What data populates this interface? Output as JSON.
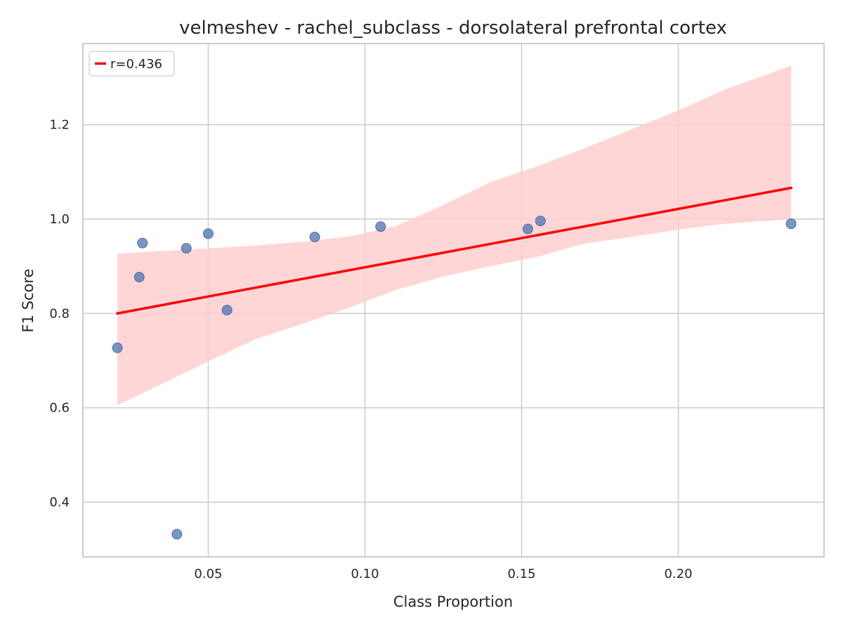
{
  "chart_data": {
    "type": "scatter",
    "title": "velmeshev - rachel_subclass - dorsolateral prefrontal cortex",
    "xlabel": "Class Proportion",
    "ylabel": "F1 Score",
    "xlim": [
      0.01,
      0.2465
    ],
    "ylim": [
      0.284,
      1.372
    ],
    "grid": true,
    "xticks": [
      0.05,
      0.1,
      0.15,
      0.2
    ],
    "xtick_labels": [
      "0.05",
      "0.10",
      "0.15",
      "0.20"
    ],
    "yticks": [
      0.4,
      0.6,
      0.8,
      1.0,
      1.2
    ],
    "ytick_labels": [
      "0.4",
      "0.6",
      "0.8",
      "1.0",
      "1.2"
    ],
    "legend": {
      "position": "top-left",
      "entries": [
        {
          "label": "r=0.436",
          "color": "#ff0000"
        }
      ]
    },
    "series": [
      {
        "kind": "points",
        "color": "#4c72b0",
        "x": [
          0.021,
          0.028,
          0.029,
          0.04,
          0.043,
          0.05,
          0.056,
          0.084,
          0.105,
          0.152,
          0.156,
          0.236
        ],
        "y": [
          0.727,
          0.877,
          0.949,
          0.332,
          0.938,
          0.969,
          0.807,
          0.962,
          0.984,
          0.979,
          0.996,
          0.99
        ]
      },
      {
        "kind": "regression",
        "label": "r=0.436",
        "color": "#ff0000",
        "x": [
          0.021,
          0.236
        ],
        "y": [
          0.8,
          1.066
        ]
      },
      {
        "kind": "confidence-band",
        "color": "#ffcccc",
        "x": [
          0.021,
          0.035,
          0.05,
          0.065,
          0.08,
          0.095,
          0.11,
          0.125,
          0.14,
          0.155,
          0.17,
          0.185,
          0.2,
          0.215,
          0.236
        ],
        "upper": [
          0.927,
          0.932,
          0.938,
          0.944,
          0.952,
          0.963,
          0.985,
          1.03,
          1.078,
          1.112,
          1.15,
          1.19,
          1.23,
          1.275,
          1.325
        ],
        "lower": [
          0.605,
          0.65,
          0.698,
          0.745,
          0.778,
          0.812,
          0.85,
          0.878,
          0.9,
          0.92,
          0.948,
          0.962,
          0.978,
          0.99,
          1.0
        ]
      }
    ]
  }
}
